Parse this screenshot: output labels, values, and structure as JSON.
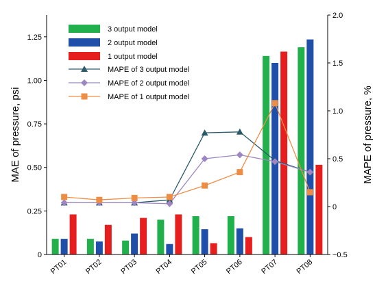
{
  "chart_data": {
    "type": "bar",
    "categories": [
      "PT01",
      "PT02",
      "PT03",
      "PT04",
      "PT05",
      "PT06",
      "PT07",
      "PT08"
    ],
    "bar_series": [
      {
        "name": "3 output model",
        "color": "#21b04b",
        "values": [
          0.09,
          0.09,
          0.08,
          0.2,
          0.22,
          0.22,
          1.14,
          1.19
        ]
      },
      {
        "name": "2 output model",
        "color": "#1f4fa8",
        "values": [
          0.09,
          0.075,
          0.12,
          0.06,
          0.145,
          0.15,
          1.1,
          1.235
        ]
      },
      {
        "name": "1 output model",
        "color": "#e61e1e",
        "values": [
          0.23,
          0.17,
          0.21,
          0.23,
          0.065,
          0.1,
          1.165,
          0.515
        ]
      }
    ],
    "line_series": [
      {
        "name": "MAPE of 3 output model",
        "color": "#2a5a6a",
        "marker": "triangle",
        "values": [
          0.04,
          0.04,
          0.04,
          0.07,
          0.77,
          0.78,
          0.48,
          0.36
        ]
      },
      {
        "name": "MAPE of 2 output model",
        "color": "#9d86c2",
        "marker": "diamond",
        "values": [
          0.04,
          0.04,
          0.04,
          0.03,
          0.5,
          0.54,
          0.47,
          0.36
        ]
      },
      {
        "name": "MAPE of 1 output  model",
        "color": "#ed8e46",
        "marker": "square",
        "values": [
          0.1,
          0.07,
          0.09,
          0.1,
          0.22,
          0.36,
          1.08,
          0.15
        ]
      }
    ],
    "y_left": {
      "label": "MAE of pressure, psi",
      "lim": [
        0,
        1.375
      ],
      "ticks": [
        0,
        0.25,
        0.5,
        0.75,
        1.0,
        1.25
      ],
      "tick_labels": [
        "0",
        "0.25",
        "0.50",
        "0.75",
        "1.00",
        "1.25"
      ]
    },
    "y_right": {
      "label": "MAPE of pressure, %",
      "lim": [
        -0.5,
        2.0
      ],
      "ticks": [
        -0.5,
        0,
        0.5,
        1.0,
        1.5,
        2.0
      ],
      "tick_labels": [
        "−0.5",
        "0",
        "0.5",
        "1.0",
        "1.5",
        "2.0"
      ]
    },
    "legend_position": "top-left",
    "grid": false
  }
}
